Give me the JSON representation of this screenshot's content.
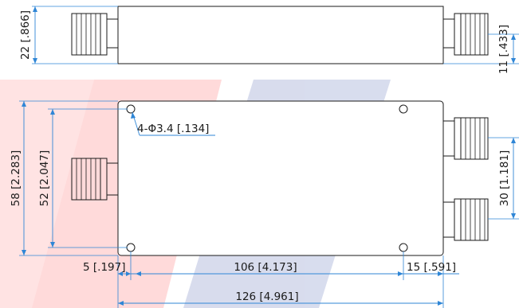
{
  "colors": {
    "dimension": "#2f86d6",
    "outline": "#1a1a1a",
    "watermark_red": "#ffd6d6",
    "watermark_blue": "#cfd5ea"
  },
  "top_view": {
    "height_label": "22 [.866]",
    "connector_offset_label": "11 [.433]"
  },
  "front_view": {
    "hole_callout": "4-Φ3.4 [.134]",
    "overall_height_label": "58 [2.283]",
    "hole_spacing_vertical_label": "52 [2.047]",
    "output_spacing_label": "30 [1.181]",
    "left_offset_label": "5 [.197]",
    "hole_spacing_horizontal_label": "106 [4.173]",
    "right_offset_label": "15 [.591]",
    "overall_length_label": "126 [4.961]"
  }
}
